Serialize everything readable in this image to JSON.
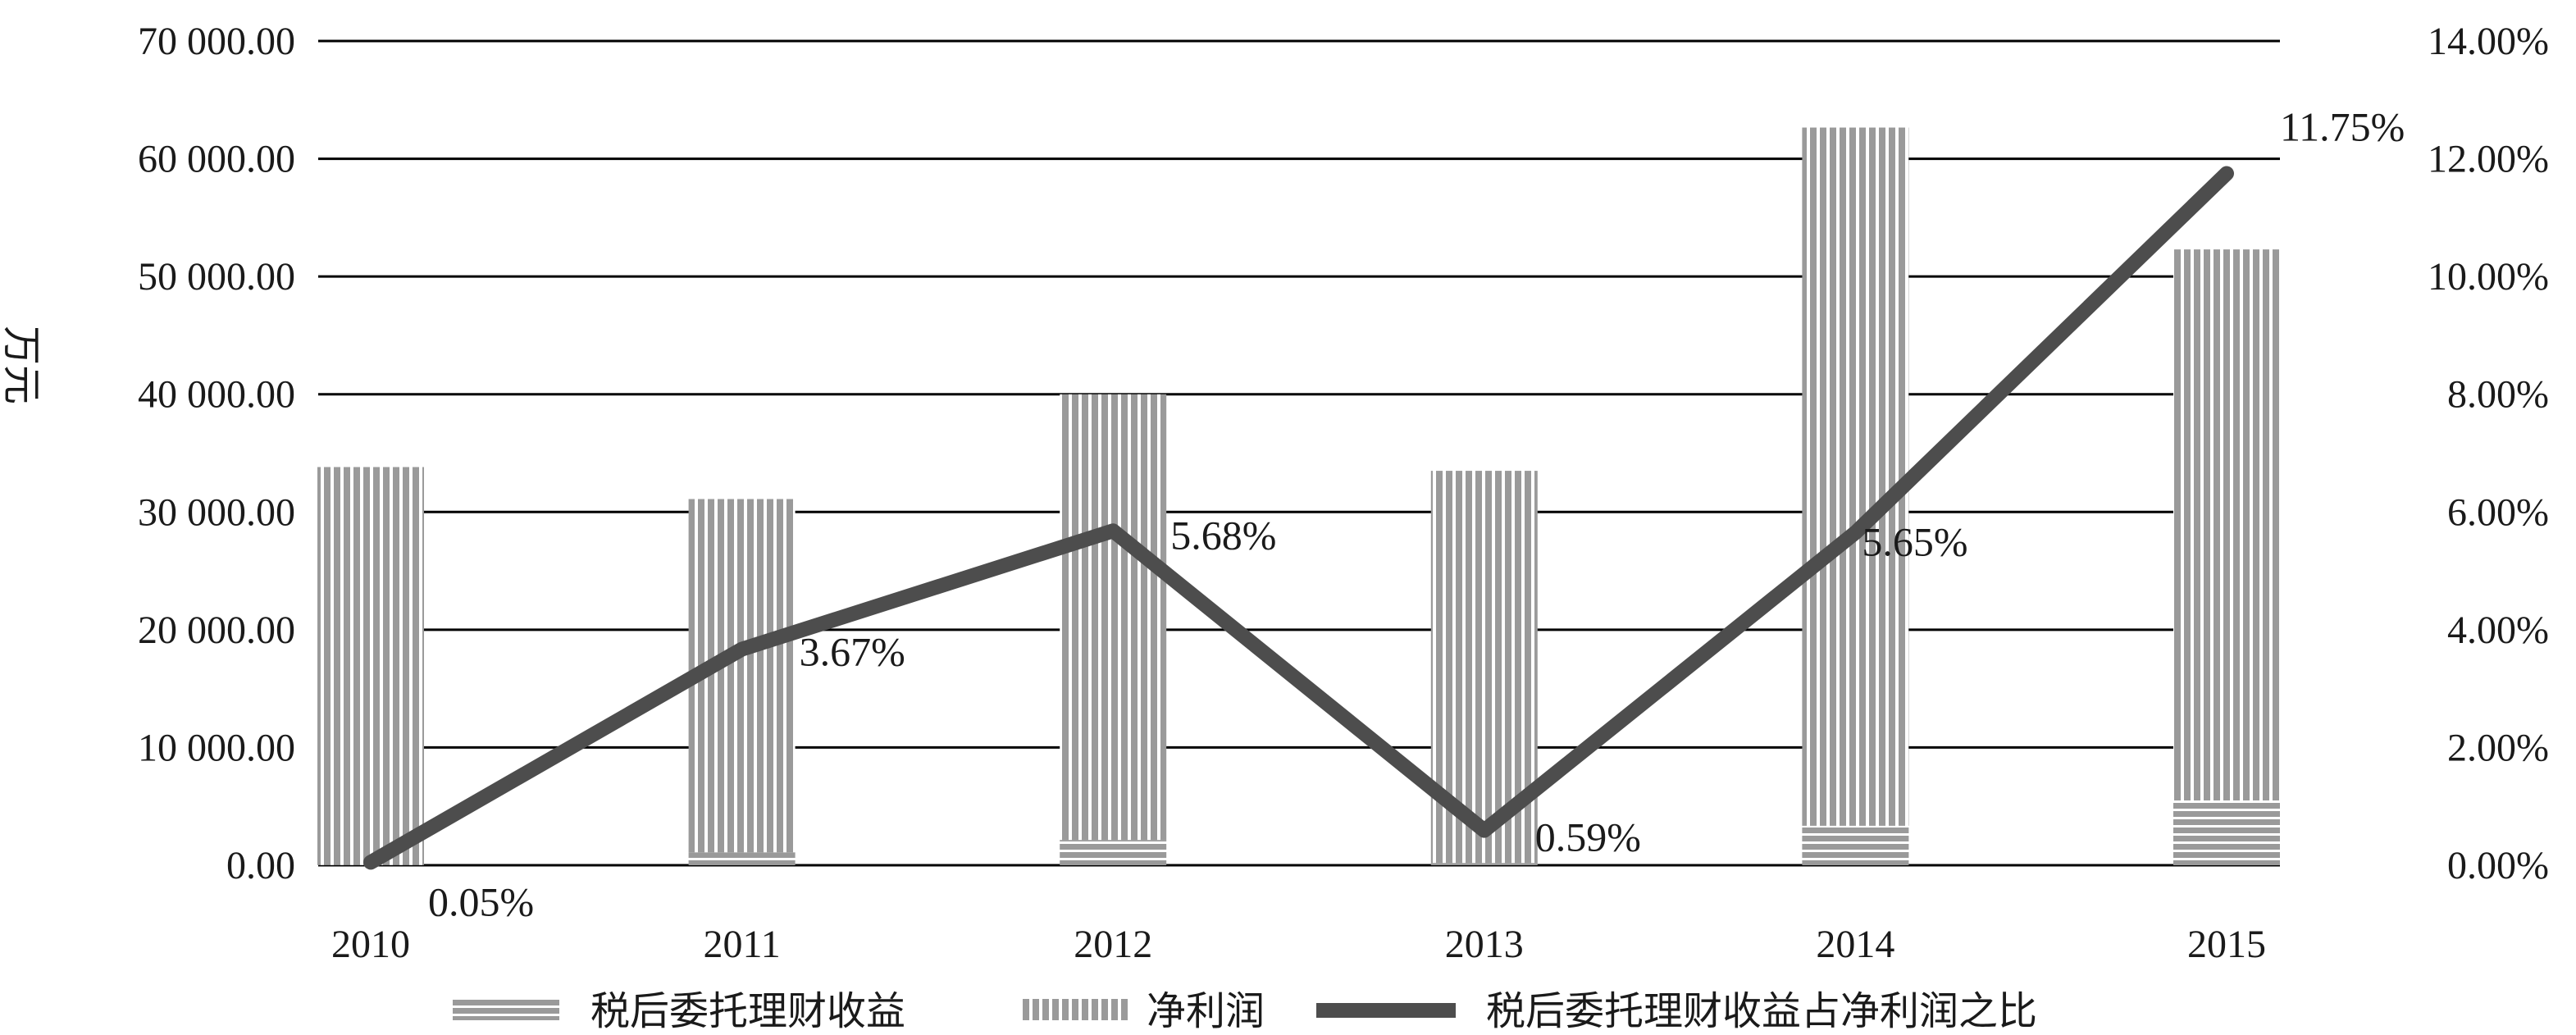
{
  "chart_data": {
    "type": "bar",
    "categories": [
      "2010",
      "2011",
      "2012",
      "2013",
      "2014",
      "2015"
    ],
    "ylabel": "万元",
    "ylim": [
      0,
      70000
    ],
    "y2lim": [
      0,
      0.14
    ],
    "y_ticks": [
      "0.00",
      "10 000.00",
      "20 000.00",
      "30 000.00",
      "40 000.00",
      "50 000.00",
      "60 000.00",
      "70 000.00"
    ],
    "y2_ticks": [
      "0.00%",
      "2.00%",
      "4.00%",
      "6.00%",
      "8.00%",
      "10.00%",
      "12.00%",
      "14.00%"
    ],
    "grid": true,
    "legend_position": "bottom",
    "stacked": true,
    "series": [
      {
        "name": "税后委托理财收益",
        "kind": "bar",
        "axis": "left",
        "pattern": "horizontal-stripes",
        "values": [
          17,
          1100,
          2150,
          197,
          3350,
          5500
        ]
      },
      {
        "name": "净利润",
        "kind": "bar",
        "axis": "left",
        "pattern": "vertical-stripes",
        "values": [
          33800,
          30000,
          37850,
          33300,
          59300,
          46800
        ]
      },
      {
        "name": "税后委托理财收益占净利润之比",
        "kind": "line",
        "axis": "right",
        "values": [
          0.0005,
          0.0367,
          0.0568,
          0.0059,
          0.0565,
          0.1175
        ],
        "labels": [
          "0.05%",
          "3.67%",
          "5.68%",
          "0.59%",
          "5.65%",
          "11.75%"
        ],
        "color": "#4d4d4d"
      }
    ],
    "colors": {
      "bar_fill": "#9a9a9a",
      "bar_stripe": "#ffffff",
      "line": "#4d4d4d",
      "grid": "#000000"
    }
  }
}
